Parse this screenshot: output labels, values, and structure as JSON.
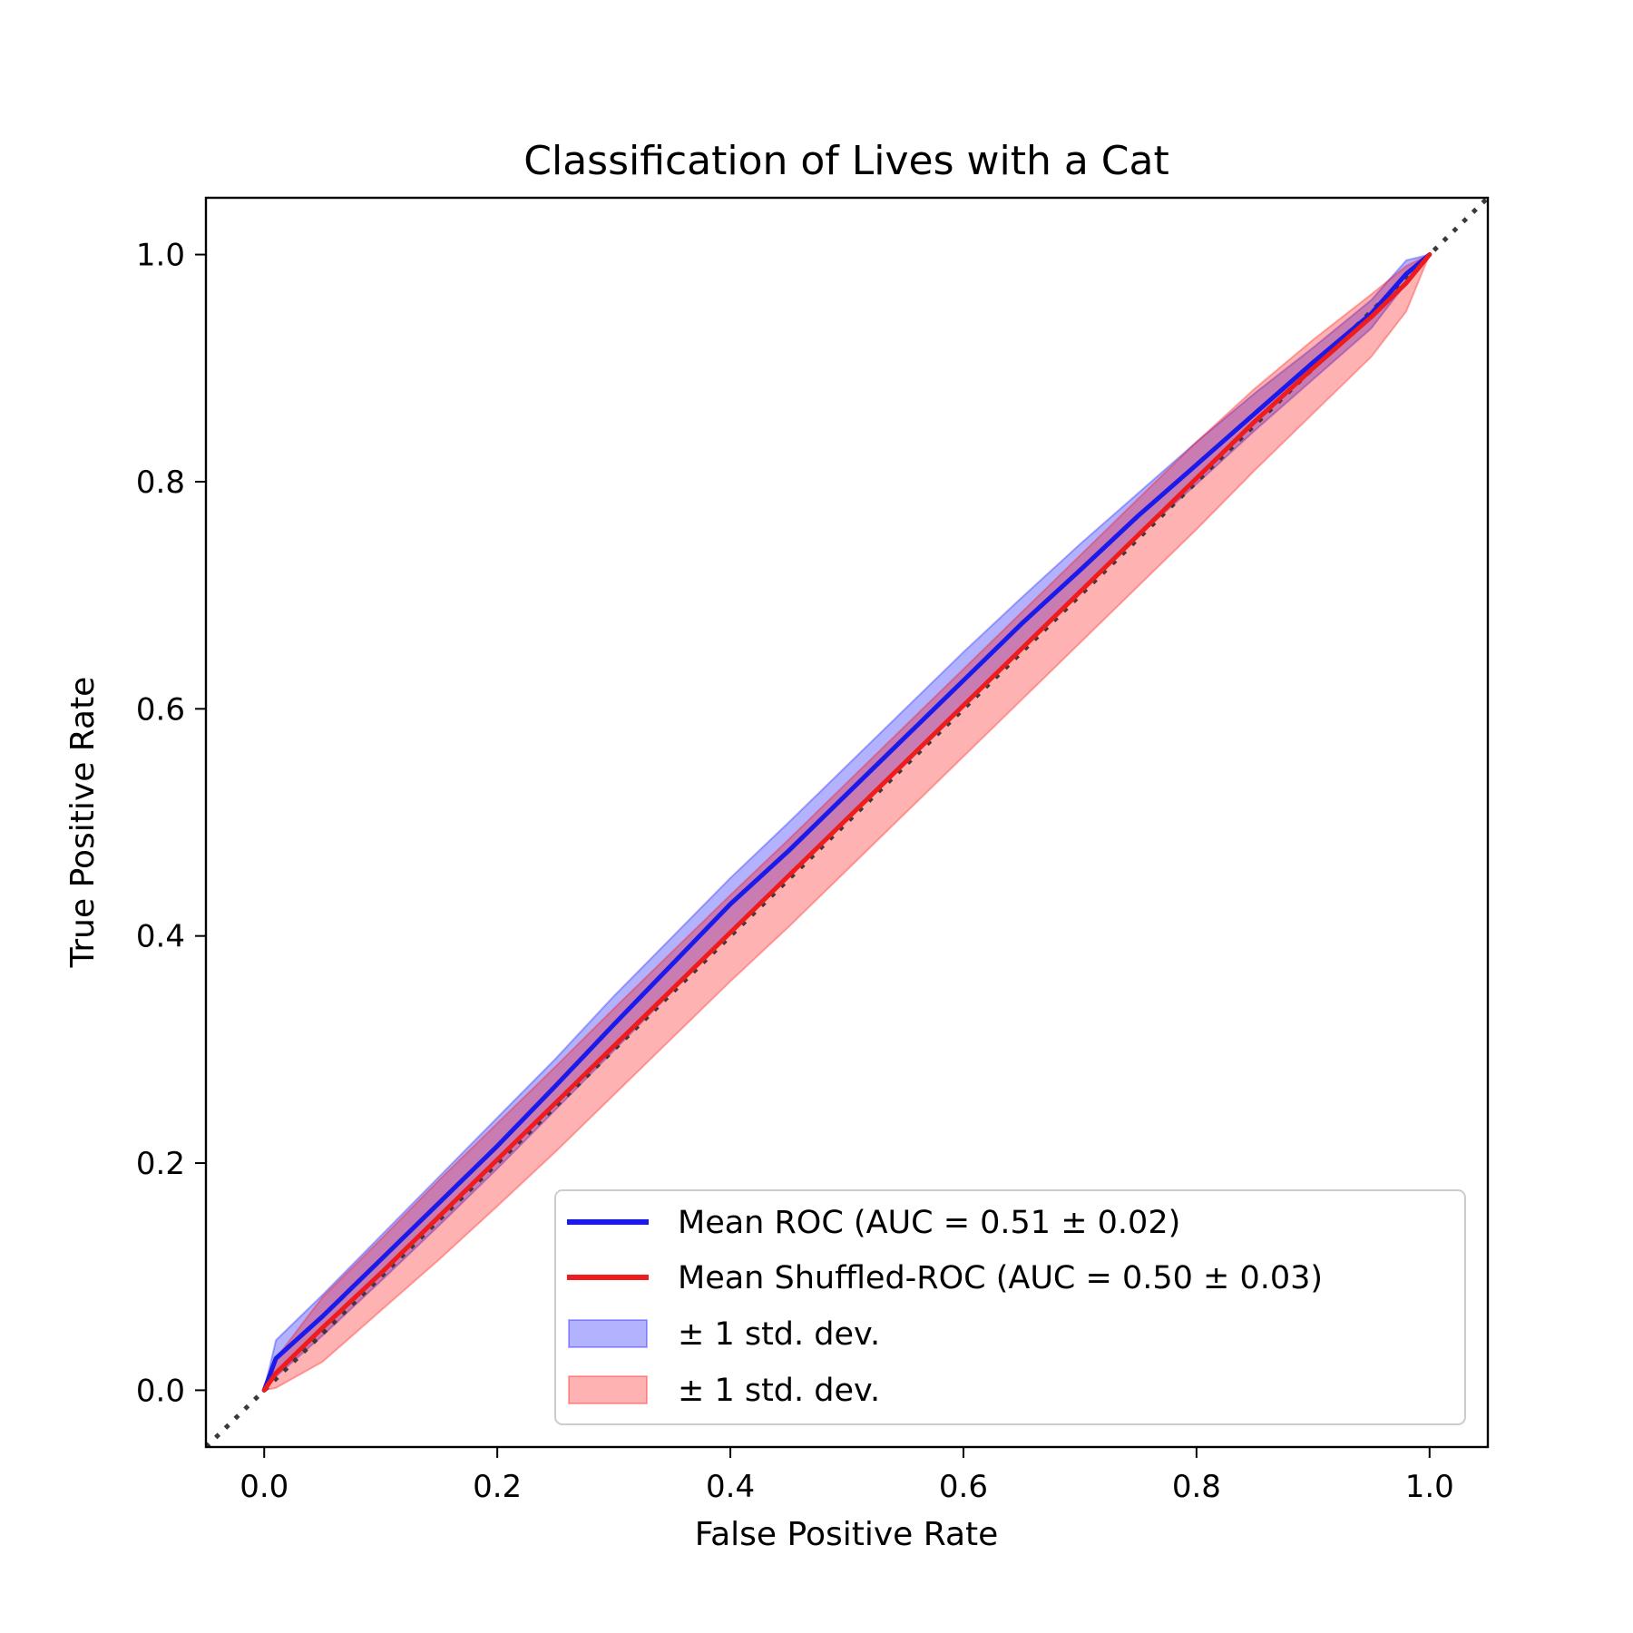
{
  "chart_data": {
    "type": "line",
    "title": "Classification of Lives with a Cat",
    "xlabel": "False Positive Rate",
    "ylabel": "True Positive Rate",
    "xlim": [
      -0.05,
      1.05
    ],
    "ylim": [
      -0.05,
      1.05
    ],
    "xticks": [
      "0.0",
      "0.2",
      "0.4",
      "0.6",
      "0.8",
      "1.0"
    ],
    "yticks": [
      "0.0",
      "0.2",
      "0.4",
      "0.6",
      "0.8",
      "1.0"
    ],
    "grid": false,
    "legend_position": "lower-right",
    "x": [
      0,
      0.01,
      0.05,
      0.1,
      0.15,
      0.2,
      0.25,
      0.3,
      0.35,
      0.4,
      0.45,
      0.5,
      0.55,
      0.6,
      0.65,
      0.7,
      0.75,
      0.8,
      0.85,
      0.9,
      0.95,
      0.98,
      1.0
    ],
    "series": [
      {
        "name": "Mean ROC (AUC = 0.51 ± 0.02)",
        "kind": "line",
        "color": "#1a1aeb",
        "values": [
          0,
          0.028,
          0.065,
          0.115,
          0.165,
          0.215,
          0.268,
          0.322,
          0.375,
          0.428,
          0.475,
          0.525,
          0.575,
          0.625,
          0.675,
          0.722,
          0.77,
          0.815,
          0.86,
          0.905,
          0.948,
          0.983,
          1.0
        ]
      },
      {
        "name": "Mean Shuffled-ROC (AUC = 0.50 ± 0.03)",
        "kind": "line",
        "color": "#ee1c1c",
        "values": [
          0,
          0.015,
          0.055,
          0.103,
          0.153,
          0.203,
          0.253,
          0.303,
          0.353,
          0.403,
          0.453,
          0.503,
          0.553,
          0.603,
          0.653,
          0.703,
          0.753,
          0.803,
          0.853,
          0.9,
          0.945,
          0.975,
          1.0
        ]
      },
      {
        "name": "± 1 std. dev.",
        "kind": "band",
        "color": "#0000ff",
        "lower": [
          0,
          0.012,
          0.048,
          0.096,
          0.145,
          0.195,
          0.247,
          0.299,
          0.351,
          0.403,
          0.452,
          0.503,
          0.553,
          0.603,
          0.654,
          0.703,
          0.752,
          0.798,
          0.845,
          0.89,
          0.935,
          0.975,
          1.0
        ],
        "upper": [
          0,
          0.044,
          0.084,
          0.136,
          0.188,
          0.24,
          0.292,
          0.347,
          0.399,
          0.451,
          0.5,
          0.55,
          0.6,
          0.65,
          0.698,
          0.745,
          0.79,
          0.835,
          0.878,
          0.918,
          0.96,
          0.995,
          1.0
        ]
      },
      {
        "name": "± 1 std. dev.",
        "kind": "band",
        "color": "#ff0000",
        "lower": [
          0,
          0.002,
          0.025,
          0.07,
          0.115,
          0.162,
          0.21,
          0.26,
          0.31,
          0.36,
          0.408,
          0.458,
          0.508,
          0.558,
          0.608,
          0.658,
          0.708,
          0.758,
          0.81,
          0.86,
          0.91,
          0.95,
          1.0
        ],
        "upper": [
          0,
          0.028,
          0.082,
          0.133,
          0.185,
          0.235,
          0.285,
          0.336,
          0.386,
          0.436,
          0.485,
          0.535,
          0.585,
          0.635,
          0.685,
          0.735,
          0.785,
          0.835,
          0.882,
          0.925,
          0.965,
          0.99,
          1.0
        ]
      },
      {
        "name": "",
        "kind": "dotted",
        "color": "#3a3a3a",
        "x": [
          -0.05,
          1.05
        ],
        "values": [
          -0.05,
          1.05
        ]
      }
    ]
  }
}
